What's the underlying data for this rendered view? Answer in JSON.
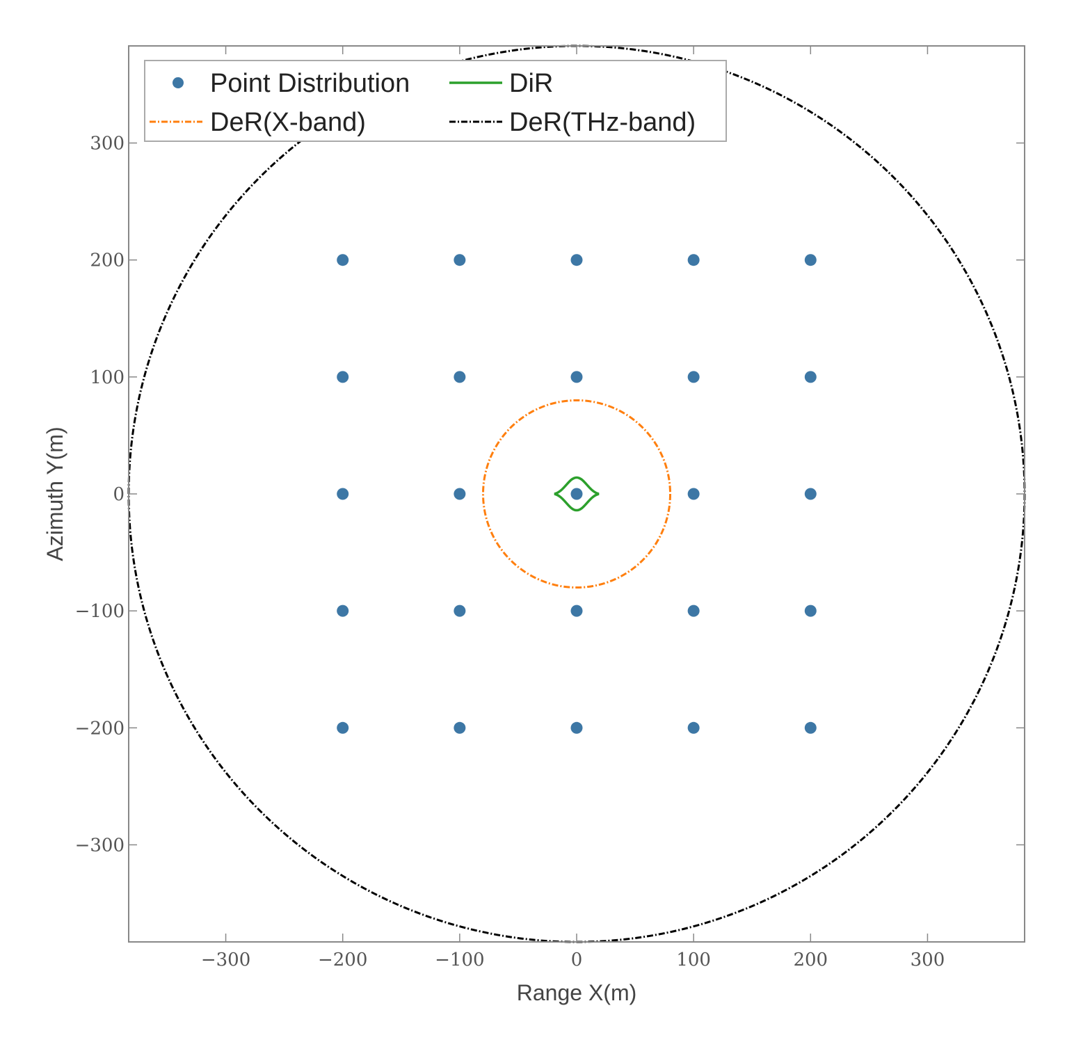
{
  "chart_data": {
    "type": "scatter",
    "title": "",
    "xlabel": "Range X(m)",
    "ylabel": "Azimuth Y(m)",
    "xlim": [
      -383,
      383
    ],
    "ylim": [
      -383,
      383
    ],
    "xticks": [
      -300,
      -200,
      -100,
      0,
      100,
      200,
      300
    ],
    "yticks": [
      -300,
      -200,
      -100,
      0,
      100,
      200,
      300
    ],
    "xtick_labels": [
      "−300",
      "−200",
      "−100",
      "0",
      "100",
      "200",
      "300"
    ],
    "ytick_labels": [
      "−300",
      "−200",
      "−100",
      "0",
      "100",
      "200",
      "300"
    ],
    "grid": false,
    "legend_position": "top-left",
    "series": [
      {
        "name": "Point Distribution",
        "kind": "scatter",
        "color": "#3d77a5",
        "points": [
          [
            -200,
            200
          ],
          [
            -100,
            200
          ],
          [
            0,
            200
          ],
          [
            100,
            200
          ],
          [
            200,
            200
          ],
          [
            -200,
            100
          ],
          [
            -100,
            100
          ],
          [
            0,
            100
          ],
          [
            100,
            100
          ],
          [
            200,
            100
          ],
          [
            -200,
            0
          ],
          [
            -100,
            0
          ],
          [
            0,
            0
          ],
          [
            100,
            0
          ],
          [
            200,
            0
          ],
          [
            -200,
            -100
          ],
          [
            -100,
            -100
          ],
          [
            0,
            -100
          ],
          [
            100,
            -100
          ],
          [
            200,
            -100
          ],
          [
            -200,
            -200
          ],
          [
            -100,
            -200
          ],
          [
            0,
            -200
          ],
          [
            100,
            -200
          ],
          [
            200,
            -200
          ]
        ]
      },
      {
        "name": "DiR",
        "kind": "closed-curve",
        "color": "#2ca02c",
        "style": "solid",
        "half_width": 19,
        "half_height": 14
      },
      {
        "name": "DeR(X-band)",
        "kind": "circle",
        "color": "#ff7f0e",
        "style": "dashdot",
        "center": [
          0,
          0
        ],
        "radius": 80
      },
      {
        "name": "DeR(THz-band)",
        "kind": "circle",
        "color": "#000000",
        "style": "dashdot",
        "center": [
          0,
          0
        ],
        "radius": 383
      }
    ],
    "legend": {
      "columns": 2,
      "entries": [
        "Point Distribution",
        "DiR",
        "DeR(X-band)",
        "DeR(THz-band)"
      ]
    }
  }
}
